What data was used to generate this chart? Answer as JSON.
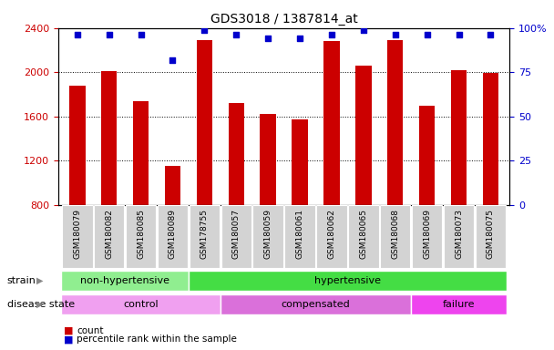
{
  "title": "GDS3018 / 1387814_at",
  "samples": [
    "GSM180079",
    "GSM180082",
    "GSM180085",
    "GSM180089",
    "GSM178755",
    "GSM180057",
    "GSM180059",
    "GSM180061",
    "GSM180062",
    "GSM180065",
    "GSM180068",
    "GSM180069",
    "GSM180073",
    "GSM180075"
  ],
  "counts": [
    1880,
    2010,
    1740,
    1155,
    2290,
    1720,
    1620,
    1570,
    2285,
    2060,
    2290,
    1700,
    2020,
    1990
  ],
  "percentiles": [
    96,
    96,
    96,
    82,
    99,
    96,
    94,
    94,
    96,
    99,
    96,
    96,
    96,
    96
  ],
  "ylim_left": [
    800,
    2400
  ],
  "ylim_right": [
    0,
    100
  ],
  "yticks_left": [
    800,
    1200,
    1600,
    2000,
    2400
  ],
  "yticks_right": [
    0,
    25,
    50,
    75,
    100
  ],
  "ytick_right_labels": [
    "0",
    "25",
    "50",
    "75",
    "100%"
  ],
  "strain_groups": [
    {
      "label": "non-hypertensive",
      "start": 0,
      "end": 4,
      "color": "#90EE90"
    },
    {
      "label": "hypertensive",
      "start": 4,
      "end": 14,
      "color": "#44DD44"
    }
  ],
  "disease_groups": [
    {
      "label": "control",
      "start": 0,
      "end": 5,
      "color": "#F0A0F0"
    },
    {
      "label": "compensated",
      "start": 5,
      "end": 11,
      "color": "#DA70DA"
    },
    {
      "label": "failure",
      "start": 11,
      "end": 14,
      "color": "#EE44EE"
    }
  ],
  "bar_color": "#CC0000",
  "dot_color": "#0000CC",
  "bar_width": 0.5,
  "tick_color_left": "#CC0000",
  "tick_color_right": "#0000CC",
  "sample_bg_color": "#D3D3D3",
  "label_left_strain": "strain",
  "label_left_disease": "disease state"
}
